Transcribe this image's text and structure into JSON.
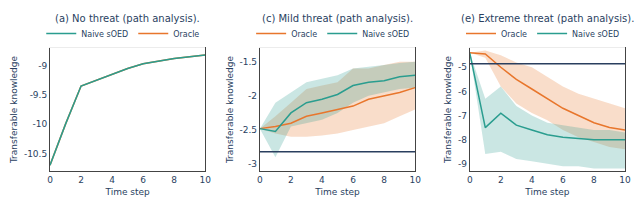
{
  "chart_data": [
    {
      "type": "line",
      "title": "(a) No threat (path analysis).",
      "x_label": "Time step",
      "y_label": "Transferable knowledge",
      "x": [
        0,
        1,
        2,
        3,
        4,
        5,
        6,
        7,
        8,
        9,
        10
      ],
      "xlim": [
        0,
        10
      ],
      "xticks": [
        0,
        2,
        4,
        6,
        8,
        10
      ],
      "ylim": [
        -10.8,
        -8.7
      ],
      "yticks": [
        -10.5,
        -10,
        -9.5,
        -9
      ],
      "legend": "top right",
      "series": [
        {
          "name": "Oracle",
          "color": "#e8762c",
          "values": [
            -10.7,
            -10.0,
            -9.35,
            -9.25,
            -9.15,
            -9.05,
            -8.97,
            -8.92,
            -8.88,
            -8.85,
            -8.82
          ]
        },
        {
          "name": "Naive sOED",
          "color": "#2a9d8f",
          "values": [
            -10.7,
            -10.0,
            -9.35,
            -9.25,
            -9.15,
            -9.05,
            -8.97,
            -8.92,
            -8.88,
            -8.85,
            -8.82
          ]
        }
      ]
    },
    {
      "type": "line",
      "title": "(c) Mild threat (path analysis).",
      "x_label": "Time step",
      "y_label": "Transferable knowledge",
      "x": [
        0,
        1,
        2,
        3,
        4,
        5,
        6,
        7,
        8,
        9,
        10
      ],
      "xlim": [
        0,
        10
      ],
      "xticks": [
        0,
        2,
        4,
        6,
        8,
        10
      ],
      "ylim": [
        -3.1,
        -1.3
      ],
      "yticks": [
        -3,
        -2.5,
        -2,
        -1.5
      ],
      "legend": "top right",
      "reference_line": {
        "value": -2.82,
        "color": "#2a3f5f"
      },
      "series": [
        {
          "name": "Oracle",
          "color": "#e8762c",
          "values": [
            -2.48,
            -2.45,
            -2.4,
            -2.3,
            -2.25,
            -2.2,
            -2.15,
            -2.05,
            -2.0,
            -1.95,
            -1.88
          ],
          "lower": [
            -2.48,
            -2.55,
            -2.6,
            -2.6,
            -2.58,
            -2.55,
            -2.5,
            -2.45,
            -2.4,
            -2.3,
            -2.2
          ],
          "upper": [
            -2.48,
            -2.3,
            -2.1,
            -1.9,
            -1.85,
            -1.8,
            -1.6,
            -1.6,
            -1.55,
            -1.5,
            -1.5
          ]
        },
        {
          "name": "Naive sOED",
          "color": "#2a9d8f",
          "values": [
            -2.48,
            -2.52,
            -2.25,
            -2.1,
            -2.05,
            -1.98,
            -1.85,
            -1.8,
            -1.78,
            -1.72,
            -1.7
          ],
          "lower": [
            -2.48,
            -2.9,
            -2.45,
            -2.4,
            -2.35,
            -2.25,
            -2.1,
            -2.0,
            -1.95,
            -1.9,
            -1.88
          ],
          "upper": [
            -2.48,
            -2.1,
            -1.95,
            -1.8,
            -1.75,
            -1.7,
            -1.6,
            -1.58,
            -1.55,
            -1.52,
            -1.5
          ]
        }
      ]
    },
    {
      "type": "line",
      "title": "(e) Extreme threat (path analysis).",
      "x_label": "Time step",
      "y_label": "Transferable knowledge",
      "x": [
        0,
        1,
        2,
        3,
        4,
        5,
        6,
        7,
        8,
        9,
        10
      ],
      "xlim": [
        0,
        10
      ],
      "xticks": [
        0,
        2,
        4,
        6,
        8,
        10
      ],
      "ylim": [
        -9.3,
        -4.2
      ],
      "yticks": [
        -9,
        -8,
        -7,
        -6,
        -5
      ],
      "legend": "top right",
      "reference_line": {
        "value": -4.85,
        "color": "#2a3f5f"
      },
      "series": [
        {
          "name": "Oracle",
          "color": "#e8762c",
          "values": [
            -4.4,
            -4.45,
            -5.0,
            -5.5,
            -5.9,
            -6.3,
            -6.7,
            -7.0,
            -7.3,
            -7.5,
            -7.6
          ],
          "lower": [
            -4.4,
            -4.6,
            -5.8,
            -6.5,
            -6.9,
            -7.2,
            -7.6,
            -7.9,
            -8.1,
            -8.3,
            -8.4
          ],
          "upper": [
            -4.4,
            -4.3,
            -4.5,
            -4.8,
            -5.0,
            -5.4,
            -5.8,
            -6.1,
            -6.3,
            -6.5,
            -6.7
          ]
        },
        {
          "name": "Naive sOED",
          "color": "#2a9d8f",
          "values": [
            -4.4,
            -7.5,
            -6.9,
            -7.4,
            -7.6,
            -7.8,
            -7.9,
            -7.95,
            -8.0,
            -8.0,
            -8.0
          ],
          "lower": [
            -4.4,
            -8.6,
            -8.5,
            -8.8,
            -8.9,
            -9.0,
            -9.1,
            -9.1,
            -9.2,
            -9.2,
            -9.2
          ],
          "upper": [
            -4.4,
            -6.3,
            -5.8,
            -6.6,
            -7.0,
            -7.3,
            -7.4,
            -7.5,
            -7.6,
            -7.6,
            -7.7
          ]
        }
      ]
    }
  ]
}
